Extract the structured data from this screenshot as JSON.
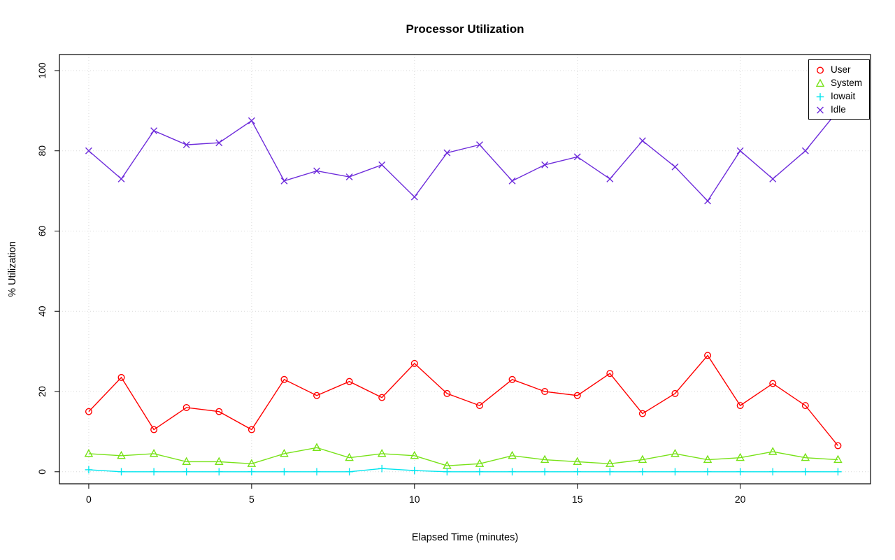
{
  "chart_data": {
    "type": "line",
    "title": "Processor Utilization",
    "xlabel": "Elapsed Time (minutes)",
    "ylabel": "% Utilization",
    "x": [
      0,
      1,
      2,
      3,
      4,
      5,
      6,
      7,
      8,
      9,
      10,
      11,
      12,
      13,
      14,
      15,
      16,
      17,
      18,
      19,
      20,
      21,
      22,
      23
    ],
    "series": [
      {
        "name": "User",
        "marker": "circle",
        "color": "#FF0000",
        "values": [
          15,
          23.5,
          10.5,
          16,
          15,
          10.5,
          23,
          19,
          22.5,
          18.5,
          27,
          19.5,
          16.5,
          23,
          20,
          19,
          24.5,
          14.5,
          19.5,
          29,
          16.5,
          22,
          16.5,
          6.5
        ]
      },
      {
        "name": "System",
        "marker": "triangle",
        "color": "#77E217",
        "values": [
          4.5,
          4,
          4.5,
          2.5,
          2.5,
          2,
          4.5,
          6,
          3.5,
          4.5,
          4,
          1.5,
          2,
          4,
          3,
          2.5,
          2,
          3,
          4.5,
          3,
          3.5,
          5,
          3.5,
          3
        ]
      },
      {
        "name": "Iowait",
        "marker": "plus",
        "color": "#00E5EE",
        "values": [
          0.5,
          0,
          0,
          0,
          0,
          0,
          0,
          0,
          0,
          0.8,
          0.3,
          0,
          0,
          0,
          0,
          0,
          0,
          0,
          0,
          0,
          0,
          0,
          0,
          0
        ]
      },
      {
        "name": "Idle",
        "marker": "x",
        "color": "#6E2CDB",
        "values": [
          80,
          73,
          85,
          81.5,
          82,
          87.5,
          72.5,
          75,
          73.5,
          76.5,
          68.5,
          79.5,
          81.5,
          72.5,
          76.5,
          78.5,
          73,
          82.5,
          76,
          67.5,
          80,
          73,
          80,
          90
        ]
      }
    ],
    "xticks": [
      0,
      5,
      10,
      15,
      20
    ],
    "yticks": [
      0,
      20,
      40,
      60,
      80,
      100
    ],
    "xlim": [
      -0.9,
      24.0
    ],
    "ylim": [
      -3,
      104
    ],
    "grid": true,
    "grid_color": "#D9D9D9",
    "legend_position": "top-right"
  }
}
